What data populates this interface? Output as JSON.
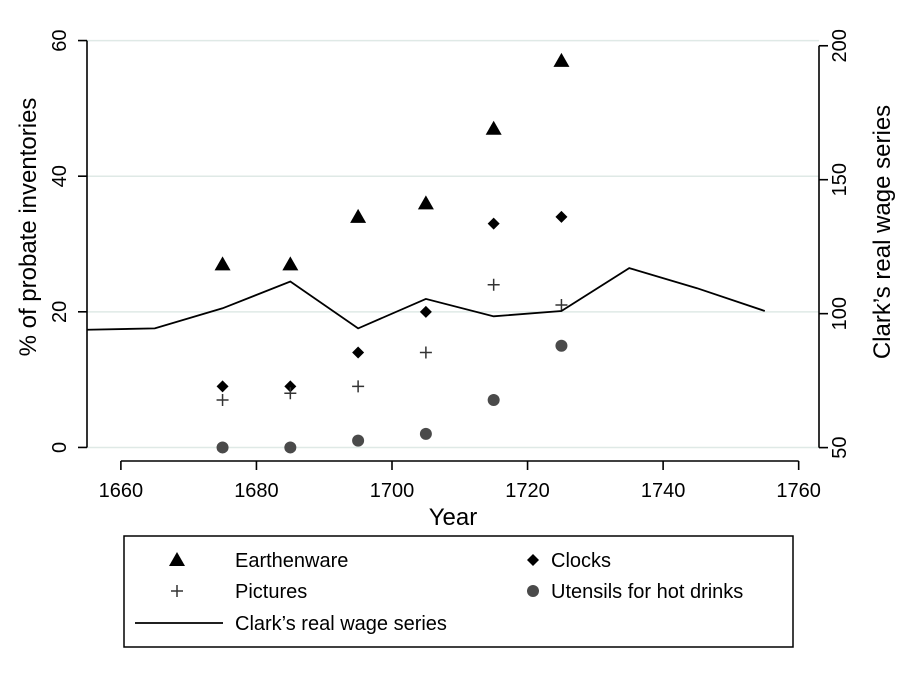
{
  "chart_data": {
    "type": "scatter",
    "xlabel": "Year",
    "ylabel": "% of probate inventories",
    "y2label": "Clark’s real wage series",
    "xlim": [
      1655,
      1763
    ],
    "ylim": [
      -2,
      62
    ],
    "y2lim": [
      45,
      207
    ],
    "xticks": [
      1660,
      1680,
      1700,
      1720,
      1740,
      1760
    ],
    "yticks": [
      0,
      20,
      40,
      60
    ],
    "y2ticks": [
      50,
      100,
      150,
      200
    ],
    "grid": "horizontal gridlines at left-axis ticks",
    "legend_position": "bottom (boxed)",
    "series": [
      {
        "name": "Earthenware",
        "axis": "left",
        "marker": "triangle",
        "x": [
          1675,
          1685,
          1695,
          1705,
          1715,
          1725
        ],
        "values": [
          27,
          27,
          34,
          36,
          47,
          57
        ]
      },
      {
        "name": "Clocks",
        "axis": "left",
        "marker": "diamond",
        "x": [
          1675,
          1685,
          1695,
          1705,
          1715,
          1725
        ],
        "values": [
          9,
          9,
          14,
          20,
          33,
          34
        ]
      },
      {
        "name": "Pictures",
        "axis": "left",
        "marker": "plus",
        "x": [
          1675,
          1685,
          1695,
          1705,
          1715,
          1725
        ],
        "values": [
          7,
          8,
          9,
          14,
          24,
          21
        ]
      },
      {
        "name": "Utensils for hot drinks",
        "axis": "left",
        "marker": "circle",
        "x": [
          1675,
          1685,
          1695,
          1705,
          1715,
          1725
        ],
        "values": [
          0,
          0,
          1,
          2,
          7,
          15
        ]
      },
      {
        "name": "Clark’s real wage series",
        "axis": "right",
        "marker": "line",
        "x": [
          1655,
          1665,
          1675,
          1685,
          1695,
          1705,
          1715,
          1725,
          1735,
          1745,
          1755
        ],
        "values": [
          94,
          94.5,
          102,
          112,
          94.5,
          105.5,
          99,
          101,
          117,
          109.5,
          101
        ]
      }
    ]
  },
  "legend": {
    "items": [
      {
        "label": "Earthenware",
        "marker": "triangle"
      },
      {
        "label": "Clocks",
        "marker": "diamond"
      },
      {
        "label": "Pictures",
        "marker": "plus"
      },
      {
        "label": "Utensils for hot drinks",
        "marker": "circle"
      },
      {
        "label": "Clark’s real wage series",
        "marker": "line"
      }
    ]
  },
  "colors": {
    "marker": "#000000",
    "circle_marker": "#4a4a4a",
    "grid": "#dfe9e6",
    "axis": "#000000"
  }
}
